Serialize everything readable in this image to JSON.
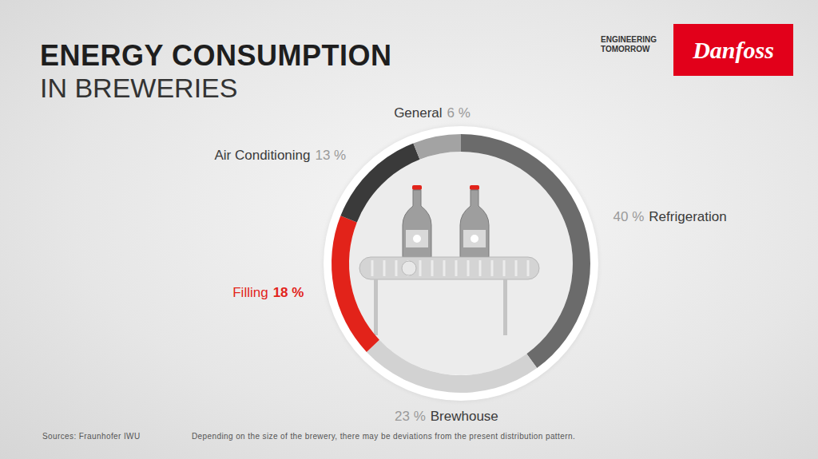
{
  "chart_data": {
    "type": "donut",
    "title": "ENERGY CONSUMPTION",
    "subtitle": "IN BREWERIES",
    "categories": [
      "Refrigeration",
      "Brewhouse",
      "Filling",
      "Air Conditioning",
      "General"
    ],
    "values": [
      40,
      23,
      18,
      13,
      6
    ],
    "value_labels": [
      "40 %",
      "23 %",
      "18 %",
      "13 %",
      "6 %"
    ],
    "colors": [
      "#6b6b6b",
      "#d2d2d2",
      "#e2231a",
      "#3a3a3a",
      "#a3a3a3"
    ],
    "data_labels": true,
    "brand": "Danfoss",
    "tagline": "ENGINEERING TOMORROW",
    "source": "Sources: Fraunhofer IWU",
    "note": "Depending on the size of the brewery, there may be deviations from the present distribution pattern."
  }
}
